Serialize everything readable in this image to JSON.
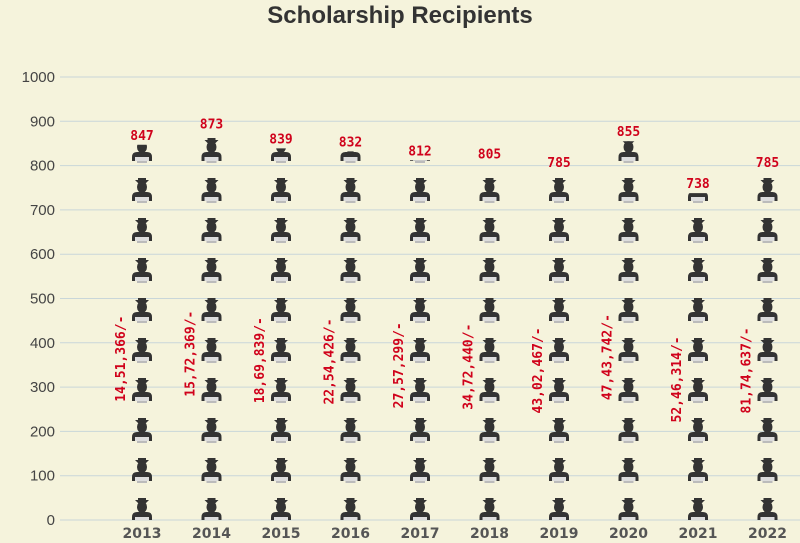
{
  "chart_data": {
    "type": "pictograph-bar",
    "title": "Scholarship Recipients",
    "categories": [
      "2013",
      "2014",
      "2015",
      "2016",
      "2017",
      "2018",
      "2019",
      "2020",
      "2021",
      "2022"
    ],
    "values": [
      847,
      873,
      839,
      832,
      812,
      805,
      785,
      855,
      738,
      785
    ],
    "amounts": [
      "14,51,366/-",
      "15,72,369/-",
      "18,69,839/-",
      "22,54,426/-",
      "27,57,299/-",
      "34,72,440/-",
      "43,02,467/-",
      "47,43,742/-",
      "52,46,314/-",
      "81,74,637/-"
    ],
    "ylim": [
      0,
      1000
    ],
    "yticks": [
      0,
      100,
      200,
      300,
      400,
      500,
      600,
      700,
      800,
      900,
      1000
    ],
    "grid": true,
    "icon": "graduate-icon",
    "colors": {
      "background": "#f5f3dc",
      "labels": "#d0021b",
      "icon": "#333333",
      "grid": "#c9d6d9"
    }
  }
}
